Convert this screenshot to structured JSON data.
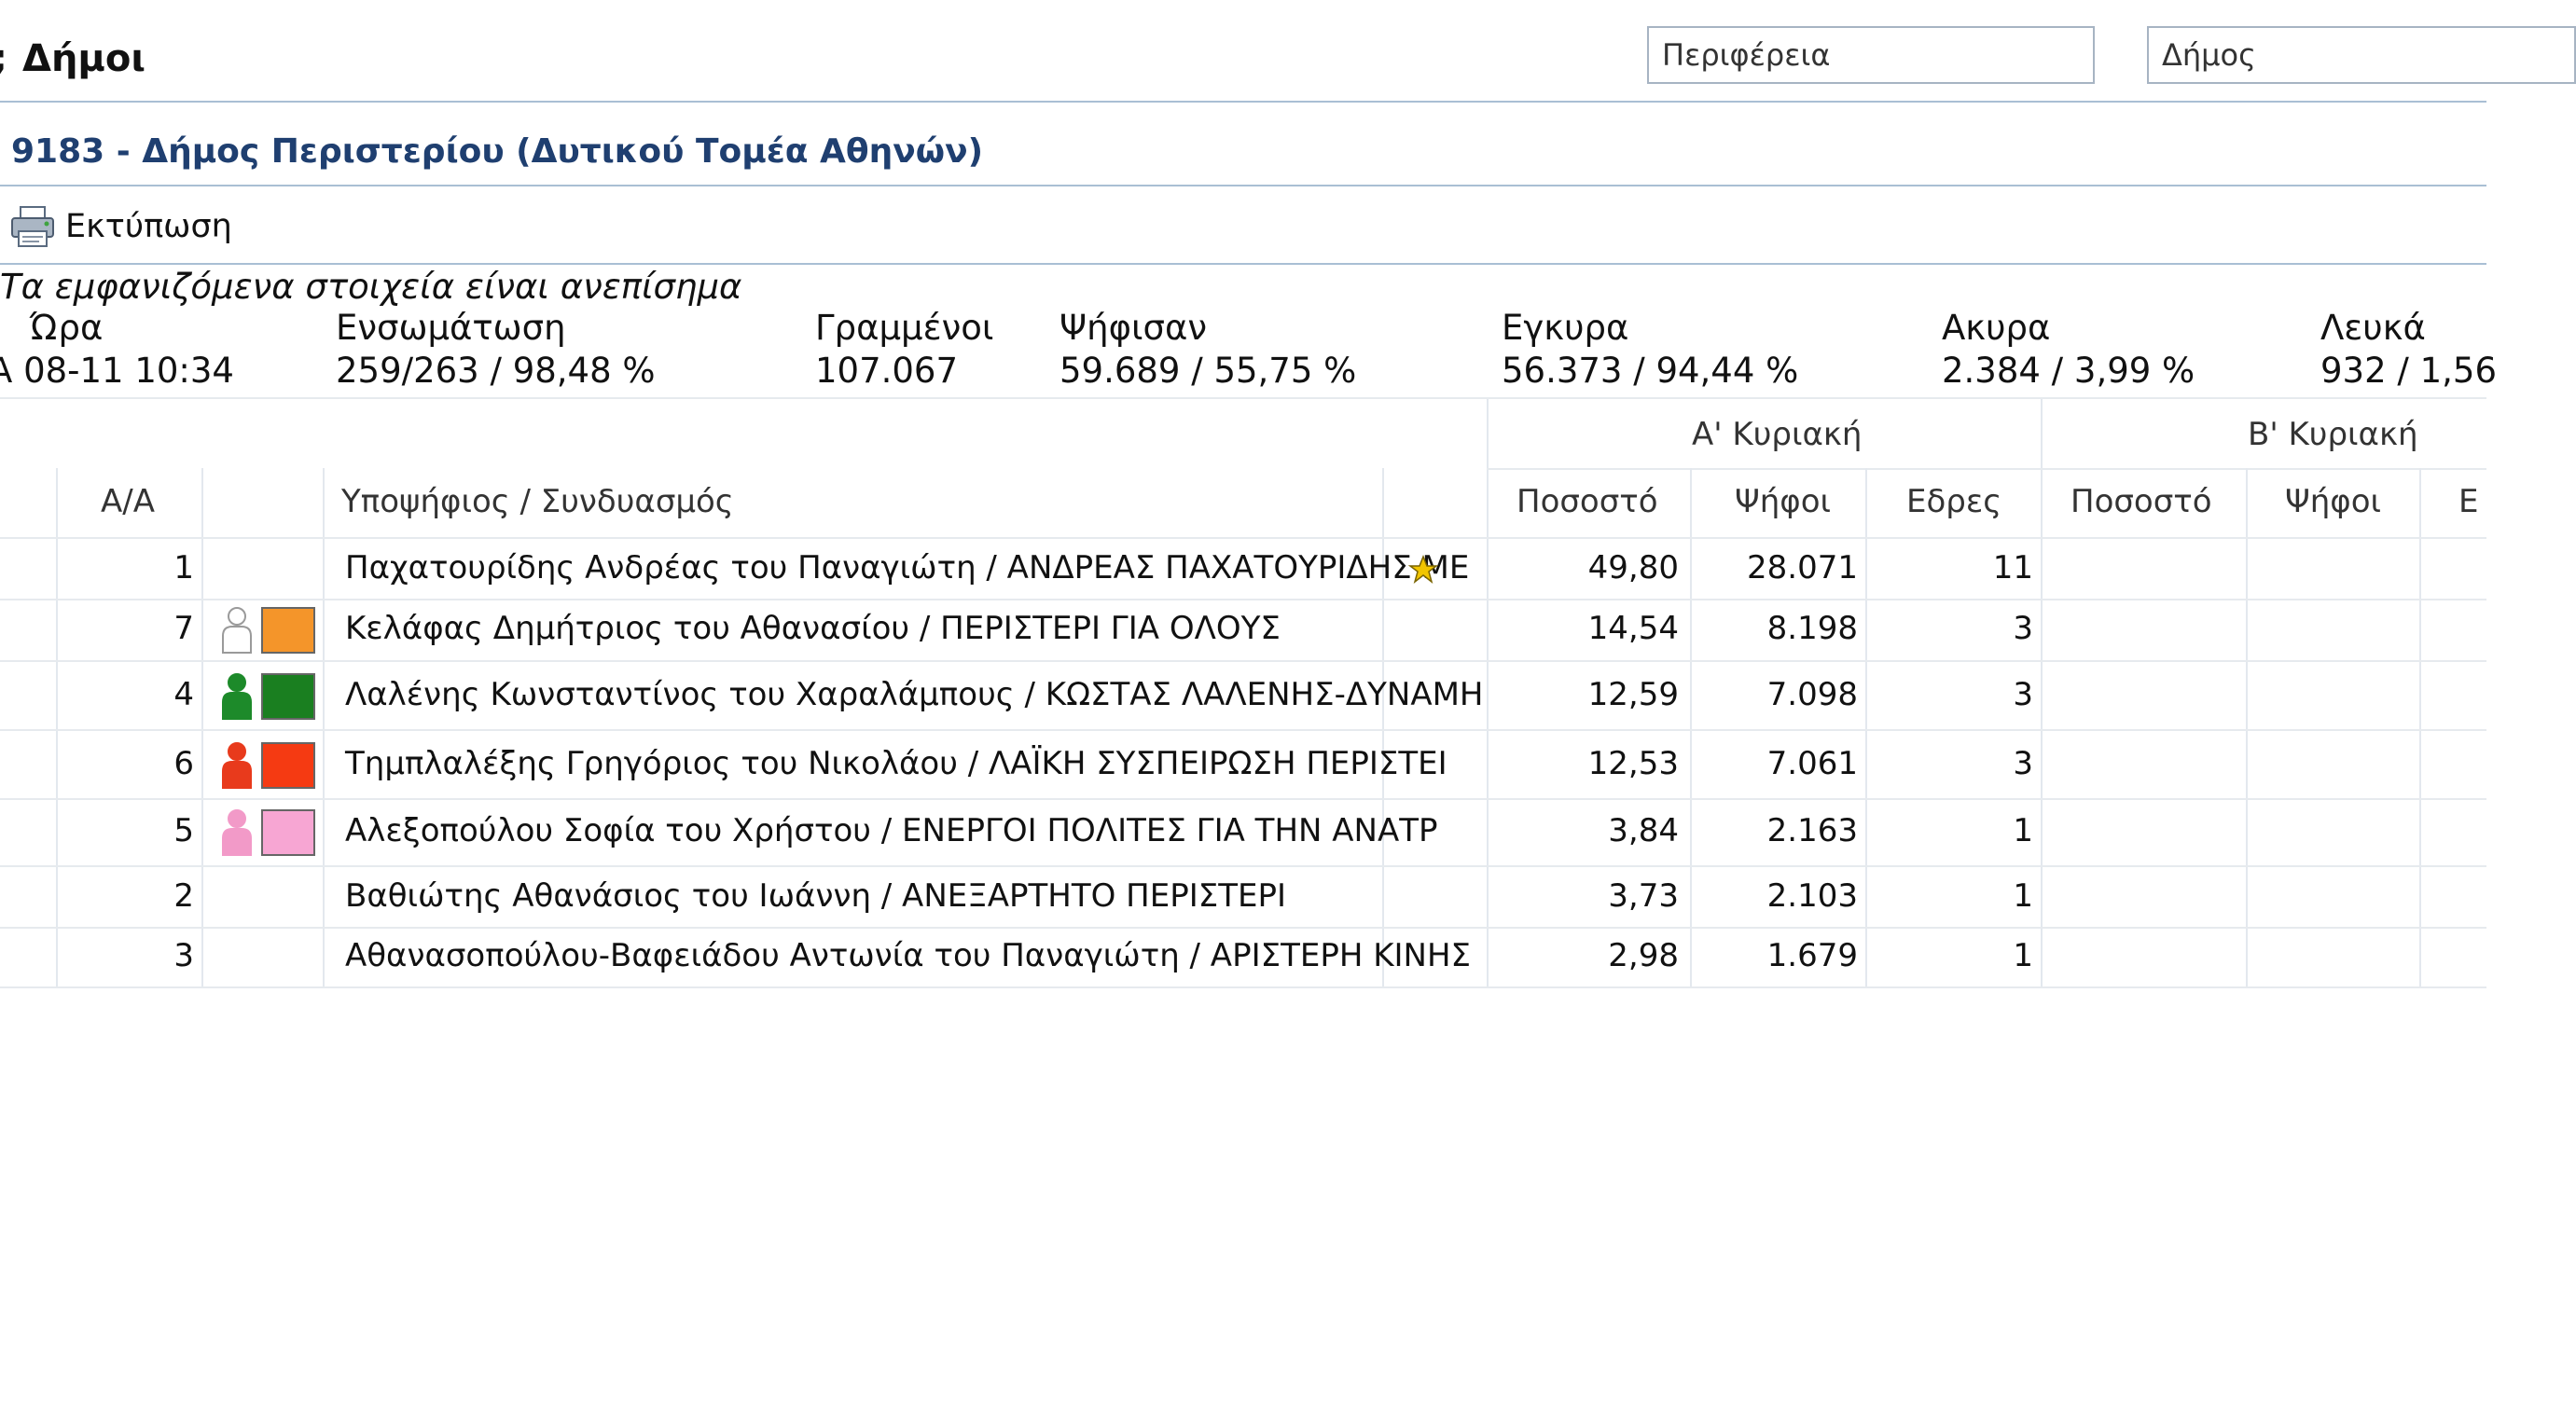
{
  "header": {
    "title_prefix": ";",
    "title": "Δήμοι",
    "select_region_placeholder": "Περιφέρεια",
    "select_municipality_placeholder": "Δήμος"
  },
  "municipality": {
    "label": "9183 - Δήμος Περιστερίου (Δυτικού Τομέα Αθηνών)"
  },
  "toolbar": {
    "print_label": "Εκτύπωση"
  },
  "note": "Τα εμφανιζόμενα στοιχεία είναι ανεπίσημα",
  "stats": {
    "time_label": "Ώρα",
    "time_value": "Α 08-11 10:34",
    "integration_label": "Ενσωμάτωση",
    "integration_value": "259/263 / 98,48 %",
    "registered_label": "Γραμμένοι",
    "registered_value": "107.067",
    "voted_label": "Ψήφισαν",
    "voted_value": "59.689 / 55,75 %",
    "valid_label": "Εγκυρα",
    "valid_value": "56.373 / 94,44 %",
    "invalid_label": "Ακυρα",
    "invalid_value": "2.384 / 3,99 %",
    "blank_label": "Λευκά",
    "blank_value": "932 / 1,56"
  },
  "table": {
    "group_a": "Α' Κυριακή",
    "group_b": "Β' Κυριακή",
    "col_aa": "Α/Α",
    "col_candidate": "Υποψήφιος / Συνδυασμός",
    "col_pct_a": "Ποσοστό",
    "col_votes_a": "Ψήφοι",
    "col_seats_a": "Εδρες",
    "col_pct_b": "Ποσοστό",
    "col_votes_b": "Ψήφοι",
    "col_seats_b": "Ε",
    "rows": [
      {
        "aa": "1",
        "name": "Παχατουρίδης Ανδρέας του Παναγιώτη / ΑΝΔΡΕΑΣ ΠΑΧΑΤΟΥΡΙΔΗΣ ΜΕ",
        "pct": "49,80",
        "votes": "28.071",
        "seats": "11",
        "star": true,
        "person": "",
        "swatch": ""
      },
      {
        "aa": "7",
        "name": "Κελάφας Δημήτριος του Αθανασίου / ΠΕΡΙΣΤΕΡΙ ΓΙΑ ΟΛΟΥΣ",
        "pct": "14,54",
        "votes": "8.198",
        "seats": "3",
        "star": false,
        "person": "outline",
        "swatch": "#f4952a"
      },
      {
        "aa": "4",
        "name": "Λαλένης Κωνσταντίνος του Χαραλάμπους / ΚΩΣΤΑΣ ΛΑΛΕΝΗΣ-ΔΥΝΑΜΗ",
        "pct": "12,59",
        "votes": "7.098",
        "seats": "3",
        "star": false,
        "person": "#1d8a2a",
        "swatch": "#1a7f20"
      },
      {
        "aa": "6",
        "name": "Τημπλαλέξης Γρηγόριος του Νικολάου / ΛΑΪΚΗ ΣΥΣΠΕΙΡΩΣΗ ΠΕΡΙΣΤΕΙ",
        "pct": "12,53",
        "votes": "7.061",
        "seats": "3",
        "star": false,
        "person": "#e83a1c",
        "swatch": "#f53a12"
      },
      {
        "aa": "5",
        "name": "Αλεξοπούλου Σοφία του Χρήστου / ΕΝΕΡΓΟΙ ΠΟΛΙΤΕΣ ΓΙΑ ΤΗΝ ΑΝΑΤΡ",
        "pct": "3,84",
        "votes": "2.163",
        "seats": "1",
        "star": false,
        "person": "#f29ac8",
        "swatch": "#f7a6d3"
      },
      {
        "aa": "2",
        "name": "Βαθιώτης Αθανάσιος του Ιωάννη / ΑΝΕΞΑΡΤΗΤΟ ΠΕΡΙΣΤΕΡΙ",
        "pct": "3,73",
        "votes": "2.103",
        "seats": "1",
        "star": false,
        "person": "",
        "swatch": ""
      },
      {
        "aa": "3",
        "name": "Αθανασοπούλου-Βαφειάδου Αντωνία του Παναγιώτη / ΑΡΙΣΤΕΡΗ ΚΙΝΗΣ",
        "pct": "2,98",
        "votes": "1.679",
        "seats": "1",
        "star": false,
        "person": "",
        "swatch": ""
      }
    ]
  },
  "icons": {
    "print": "printer-icon",
    "star": "star-icon",
    "person": "person-icon"
  }
}
